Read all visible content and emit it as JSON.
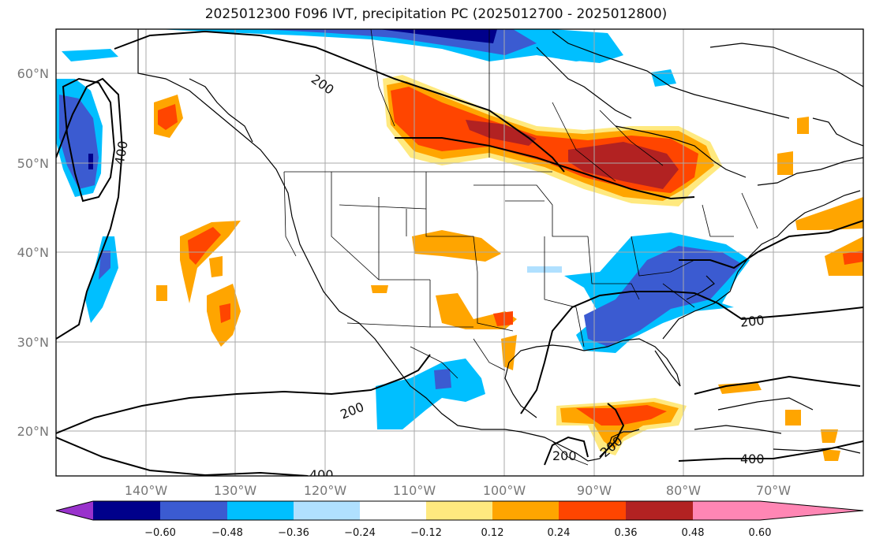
{
  "title": "2025012300 F096 IVT, precipitation PC (2025012700 - 2025012800)",
  "map": {
    "lon_range": [
      -150,
      -60
    ],
    "lat_range": [
      15,
      65
    ],
    "lat_ticks": [
      {
        "value": 20,
        "label": "20°N"
      },
      {
        "value": 30,
        "label": "30°N"
      },
      {
        "value": 40,
        "label": "40°N"
      },
      {
        "value": 50,
        "label": "50°N"
      },
      {
        "value": 60,
        "label": "60°N"
      }
    ],
    "lon_ticks": [
      {
        "value": -140,
        "label": "140°W"
      },
      {
        "value": -130,
        "label": "130°W"
      },
      {
        "value": -120,
        "label": "120°W"
      },
      {
        "value": -110,
        "label": "110°W"
      },
      {
        "value": -100,
        "label": "100°W"
      },
      {
        "value": -90,
        "label": "90°W"
      },
      {
        "value": -80,
        "label": "80°W"
      },
      {
        "value": -70,
        "label": "70°W"
      }
    ],
    "gridlines": true,
    "ivt_contour_labels": [
      "200",
      "400",
      "200",
      "200",
      "400",
      "200",
      "200",
      "400"
    ]
  },
  "colorbar": {
    "levels": [
      -0.72,
      -0.6,
      -0.48,
      -0.36,
      -0.24,
      -0.12,
      0.12,
      0.24,
      0.36,
      0.48,
      0.6,
      0.72
    ],
    "tick_labels": [
      "−0.60",
      "−0.48",
      "−0.36",
      "−0.24",
      "−0.12",
      "0.12",
      "0.24",
      "0.36",
      "0.48",
      "0.60"
    ],
    "colors": [
      "#9932cc",
      "#00008b",
      "#3b5bd1",
      "#00bfff",
      "#b0e0ff",
      "#ffffff",
      "#ffe97f",
      "#ffa500",
      "#ff4500",
      "#b22222",
      "#ff86b4"
    ],
    "extend": "both"
  }
}
